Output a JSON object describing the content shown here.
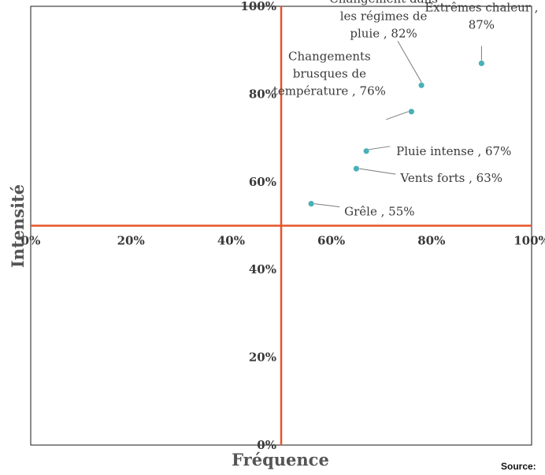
{
  "chart_data": {
    "type": "scatter",
    "xlabel": "Fréquence",
    "ylabel": "Intensité",
    "xlim": [
      0,
      100
    ],
    "ylim": [
      0,
      100
    ],
    "x_ticks": [
      "0%",
      "20%",
      "40%",
      "60%",
      "80%",
      "100%"
    ],
    "y_ticks": [
      "0%",
      "20%",
      "40%",
      "60%",
      "80%",
      "100%"
    ],
    "quadrant_lines": {
      "x": 50,
      "y": 50,
      "color": "#e8542a"
    },
    "marker_color": "#4ab0b8",
    "points": [
      {
        "label": [
          "Extrêmes  chaleur ,",
          "87%"
        ],
        "x": 90,
        "y": 87
      },
      {
        "label": [
          "Changement dans",
          "les régimes de",
          "pluie , 82%"
        ],
        "x": 78,
        "y": 82
      },
      {
        "label": [
          "Changements",
          "brusques de",
          "température , 76%"
        ],
        "x": 76,
        "y": 76
      },
      {
        "label": [
          "Pluie intense , 67%"
        ],
        "x": 67,
        "y": 67
      },
      {
        "label": [
          "Vents forts , 63%"
        ],
        "x": 65,
        "y": 63
      },
      {
        "label": [
          "Grêle , 55%"
        ],
        "x": 56,
        "y": 55
      }
    ]
  },
  "source_label": "Source:"
}
